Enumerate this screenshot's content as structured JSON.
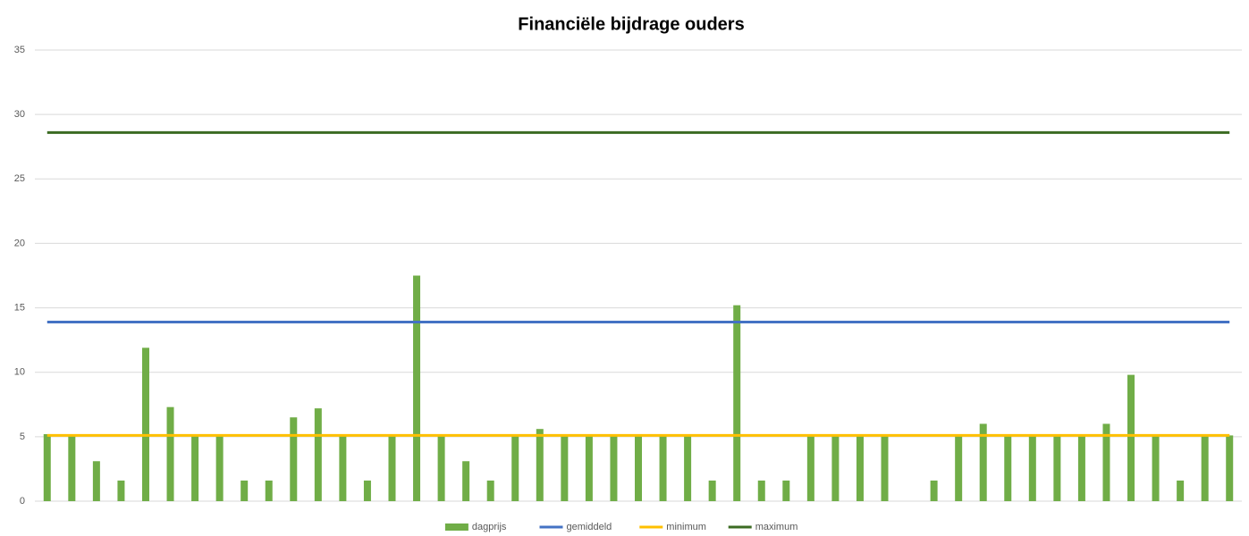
{
  "chart_data": {
    "type": "bar",
    "title": "Financiële bijdrage ouders",
    "categories": [
      null,
      null,
      null,
      null,
      null,
      null,
      null,
      null,
      null,
      null,
      null,
      null,
      null,
      null,
      null,
      null,
      null,
      null,
      null,
      null,
      null,
      null,
      null,
      null,
      null,
      null,
      null,
      null,
      null,
      null,
      null,
      null,
      null,
      null,
      null,
      null,
      null,
      null,
      null,
      null,
      null,
      null,
      null,
      null,
      null,
      null,
      null,
      null,
      null
    ],
    "series": [
      {
        "name": "dagprijs",
        "type": "bar",
        "color": "#70ad47",
        "values": [
          5.2,
          5.1,
          3.1,
          1.6,
          11.9,
          7.3,
          5.1,
          5.1,
          1.6,
          1.6,
          6.5,
          7.2,
          5.1,
          1.6,
          5.1,
          17.5,
          5.1,
          3.1,
          1.6,
          5.1,
          5.6,
          5.1,
          5.1,
          5.1,
          5.1,
          5.1,
          5.1,
          1.6,
          15.2,
          1.6,
          1.6,
          5.1,
          5.1,
          5.1,
          5.1,
          0,
          1.6,
          5.1,
          6.0,
          5.1,
          5.1,
          5.1,
          5.1,
          6.0,
          9.8,
          5.1,
          1.6,
          5.1,
          5.1
        ]
      },
      {
        "name": "gemiddeld",
        "type": "line",
        "color": "#4472c4",
        "values": [
          13.9,
          13.9,
          13.9,
          13.9,
          13.9,
          13.9,
          13.9,
          13.9,
          13.9,
          13.9,
          13.9,
          13.9,
          13.9,
          13.9,
          13.9,
          13.9,
          13.9,
          13.9,
          13.9,
          13.9,
          13.9,
          13.9,
          13.9,
          13.9,
          13.9,
          13.9,
          13.9,
          13.9,
          13.9,
          13.9,
          13.9,
          13.9,
          13.9,
          13.9,
          13.9,
          13.9,
          13.9,
          13.9,
          13.9,
          13.9,
          13.9,
          13.9,
          13.9,
          13.9,
          13.9,
          13.9,
          13.9,
          13.9,
          13.9
        ]
      },
      {
        "name": "minimum",
        "type": "line",
        "color": "#ffc000",
        "values": [
          5.1,
          5.1,
          5.1,
          5.1,
          5.1,
          5.1,
          5.1,
          5.1,
          5.1,
          5.1,
          5.1,
          5.1,
          5.1,
          5.1,
          5.1,
          5.1,
          5.1,
          5.1,
          5.1,
          5.1,
          5.1,
          5.1,
          5.1,
          5.1,
          5.1,
          5.1,
          5.1,
          5.1,
          5.1,
          5.1,
          5.1,
          5.1,
          5.1,
          5.1,
          5.1,
          5.1,
          5.1,
          5.1,
          5.1,
          5.1,
          5.1,
          5.1,
          5.1,
          5.1,
          5.1,
          5.1,
          5.1,
          5.1,
          5.1
        ]
      },
      {
        "name": "maximum",
        "type": "line",
        "color": "#3b6b22",
        "values": [
          28.6,
          28.6,
          28.6,
          28.6,
          28.6,
          28.6,
          28.6,
          28.6,
          28.6,
          28.6,
          28.6,
          28.6,
          28.6,
          28.6,
          28.6,
          28.6,
          28.6,
          28.6,
          28.6,
          28.6,
          28.6,
          28.6,
          28.6,
          28.6,
          28.6,
          28.6,
          28.6,
          28.6,
          28.6,
          28.6,
          28.6,
          28.6,
          28.6,
          28.6,
          28.6,
          28.6,
          28.6,
          28.6,
          28.6,
          28.6,
          28.6,
          28.6,
          28.6,
          28.6,
          28.6,
          28.6,
          28.6,
          28.6,
          28.6
        ]
      }
    ],
    "ylim": [
      0,
      35
    ],
    "yticks": [
      0,
      5,
      10,
      15,
      20,
      25,
      30,
      35
    ],
    "grid": true,
    "legend": "bottom"
  }
}
